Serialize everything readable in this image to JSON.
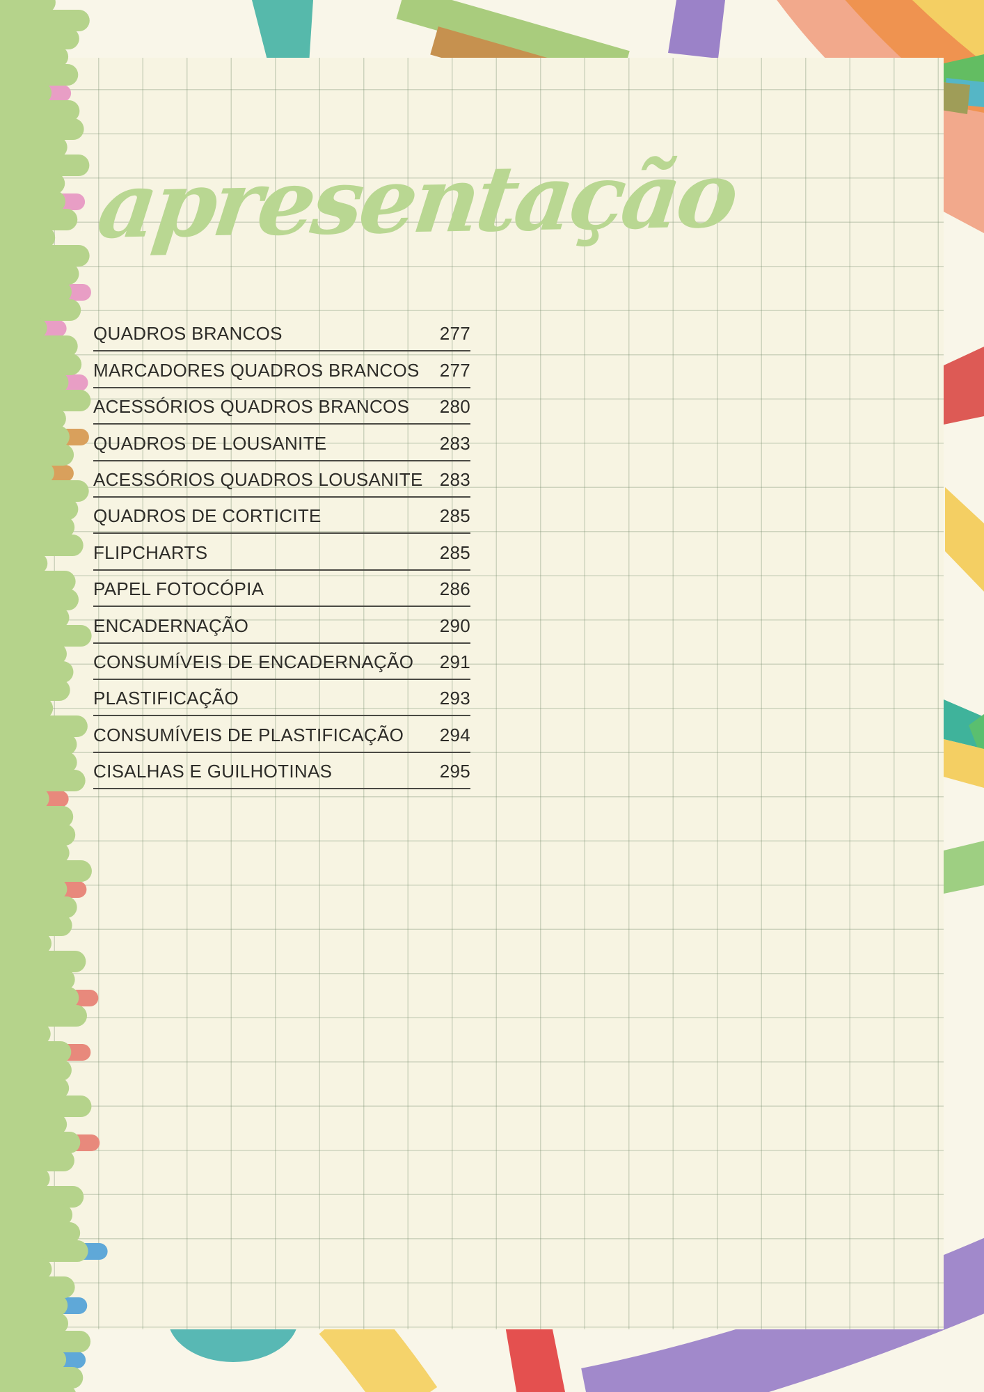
{
  "page": {
    "title": "apresentação"
  },
  "toc": {
    "items": [
      {
        "label": "QUADROS BRANCOS",
        "page": "277"
      },
      {
        "label": "MARCADORES QUADROS BRANCOS",
        "page": "277"
      },
      {
        "label": "ACESSÓRIOS QUADROS BRANCOS",
        "page": "280"
      },
      {
        "label": "QUADROS DE LOUSANITE",
        "page": "283"
      },
      {
        "label": "ACESSÓRIOS QUADROS LOUSANITE",
        "page": "283"
      },
      {
        "label": "QUADROS DE CORTICITE",
        "page": "285"
      },
      {
        "label": "FLIPCHARTS",
        "page": "285"
      },
      {
        "label": "PAPEL FOTOCÓPIA",
        "page": "286"
      },
      {
        "label": "ENCADERNAÇÃO",
        "page": "290"
      },
      {
        "label": "CONSUMÍVEIS DE ENCADERNAÇÃO",
        "page": "291"
      },
      {
        "label": "PLASTIFICAÇÃO",
        "page": "293"
      },
      {
        "label": "CONSUMÍVEIS DE PLASTIFICAÇÃO",
        "page": "294"
      },
      {
        "label": "CISALHAS E GUILHOTINAS",
        "page": "295"
      }
    ]
  },
  "palette": {
    "title_green": "#b9d792",
    "scribble_green": "#b5d38b",
    "text": "#2d2c28",
    "rule": "#4a4943",
    "paper": "#f7f4e2",
    "page_background": "#f9f6e9",
    "deco_teal": "#56b9ab",
    "deco_pink": "#ee93c1",
    "deco_orange": "#ef9350",
    "deco_salmon": "#f2a98c",
    "deco_yellow": "#f4cf63",
    "deco_red": "#dd5a55",
    "deco_purple": "#9b82c8",
    "deco_green": "#a9cc7d",
    "deco_blue": "#5fa8d8"
  }
}
